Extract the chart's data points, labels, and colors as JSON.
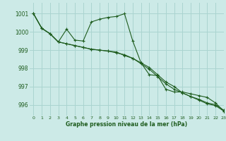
{
  "title": "Graphe pression niveau de la mer (hPa)",
  "background_color": "#cceae7",
  "grid_color": "#aad4d0",
  "line_color": "#1e5c1e",
  "xlim": [
    -0.5,
    23
  ],
  "ylim": [
    995.4,
    1001.6
  ],
  "yticks": [
    996,
    997,
    998,
    999,
    1000,
    1001
  ],
  "xticks": [
    0,
    1,
    2,
    3,
    4,
    5,
    6,
    7,
    8,
    9,
    10,
    11,
    12,
    13,
    14,
    15,
    16,
    17,
    18,
    19,
    20,
    21,
    22,
    23
  ],
  "series": [
    [
      1001.0,
      1000.2,
      999.9,
      999.45,
      999.35,
      999.25,
      999.15,
      999.05,
      999.0,
      998.95,
      998.85,
      998.75,
      998.55,
      998.25,
      997.95,
      997.55,
      997.15,
      996.85,
      996.65,
      996.45,
      996.25,
      996.05,
      995.95,
      995.65
    ],
    [
      1001.0,
      1000.2,
      999.9,
      999.45,
      1000.15,
      999.55,
      999.5,
      1000.55,
      1000.7,
      1000.8,
      1000.85,
      1001.0,
      999.5,
      998.3,
      997.65,
      997.6,
      996.85,
      996.7,
      996.7,
      996.6,
      996.5,
      996.4,
      996.1,
      995.65
    ],
    [
      1001.0,
      1000.2,
      999.9,
      999.45,
      999.35,
      999.25,
      999.15,
      999.05,
      999.0,
      998.95,
      998.9,
      998.7,
      998.55,
      998.3,
      998.05,
      997.65,
      997.25,
      997.0,
      996.65,
      996.45,
      996.3,
      996.1,
      996.0,
      995.7
    ]
  ]
}
